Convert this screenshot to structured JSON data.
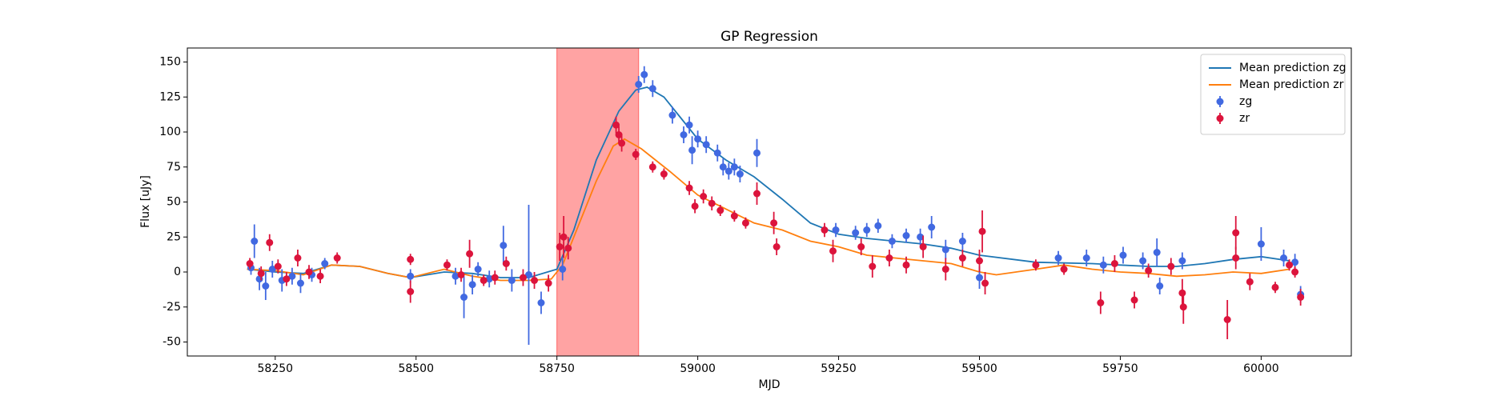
{
  "chart_data": {
    "type": "gp_errorbar",
    "title": "GP Regression",
    "xlabel": "MJD",
    "ylabel": "Flux [uJy]",
    "xlim": [
      58094,
      60160
    ],
    "ylim": [
      -60,
      160
    ],
    "xticks": [
      58250,
      58500,
      58750,
      59000,
      59250,
      59500,
      59750,
      60000
    ],
    "yticks": [
      -50,
      -25,
      0,
      25,
      50,
      75,
      100,
      125,
      150
    ],
    "shaded_region": {
      "x": [
        58750,
        58895
      ],
      "color": "#ff6666"
    },
    "legend": "upper right",
    "series": [
      {
        "name": "Mean prediction zg",
        "kind": "line",
        "color": "#1f77b4",
        "x": [
          58200,
          58250,
          58300,
          58350,
          58400,
          58450,
          58490,
          58550,
          58600,
          58650,
          58700,
          58750,
          58780,
          58820,
          58860,
          58890,
          58910,
          58940,
          58970,
          59000,
          59050,
          59100,
          59150,
          59200,
          59250,
          59300,
          59350,
          59400,
          59450,
          59500,
          59600,
          59700,
          59750,
          59800,
          59850,
          59900,
          59950,
          60000,
          60050
        ],
        "values": [
          2,
          0,
          -1,
          5,
          4,
          -1,
          -4,
          0,
          -1,
          -4,
          -4,
          2,
          30,
          80,
          115,
          130,
          132,
          125,
          110,
          95,
          80,
          68,
          52,
          35,
          27,
          24,
          22,
          20,
          17,
          12,
          7,
          6,
          5,
          4,
          4,
          6,
          9,
          11,
          8
        ]
      },
      {
        "name": "Mean prediction zr",
        "kind": "line",
        "color": "#ff7f0e",
        "x": [
          58200,
          58250,
          58300,
          58350,
          58400,
          58450,
          58490,
          58550,
          58600,
          58650,
          58700,
          58740,
          58760,
          58780,
          58820,
          58850,
          58870,
          58900,
          58950,
          59000,
          59050,
          59100,
          59150,
          59200,
          59250,
          59300,
          59350,
          59400,
          59450,
          59500,
          59530,
          59600,
          59650,
          59700,
          59750,
          59800,
          59850,
          59900,
          59950,
          60000,
          60050
        ],
        "values": [
          2,
          1,
          -2,
          5,
          4,
          -1,
          -4,
          2,
          -3,
          -6,
          -6,
          -5,
          5,
          25,
          65,
          90,
          95,
          88,
          72,
          55,
          45,
          35,
          30,
          22,
          18,
          12,
          10,
          8,
          6,
          0,
          -2,
          2,
          5,
          2,
          0,
          -1,
          -3,
          -2,
          0,
          -1,
          2
        ]
      },
      {
        "name": "zg",
        "kind": "errorbar",
        "color": "#4169e1",
        "x": [
          58207,
          58213,
          58222,
          58233,
          58245,
          58262,
          58280,
          58295,
          58315,
          58338,
          58490,
          58570,
          58585,
          58600,
          58610,
          58630,
          58655,
          58670,
          58700,
          58722,
          58760,
          58895,
          58905,
          58920,
          58955,
          58975,
          58985,
          58990,
          59000,
          59015,
          59035,
          59045,
          59055,
          59065,
          59075,
          59105,
          59245,
          59280,
          59300,
          59320,
          59345,
          59370,
          59395,
          59415,
          59440,
          59470,
          59500,
          59640,
          59690,
          59720,
          59755,
          59790,
          59815,
          59820,
          59860,
          60000,
          60040,
          60060,
          60070
        ],
        "values": [
          3,
          22,
          -5,
          -10,
          2,
          -6,
          -3,
          -8,
          -2,
          6,
          -3,
          -3,
          -18,
          -9,
          2,
          -5,
          19,
          -6,
          -2,
          -22,
          2,
          134,
          141,
          131,
          112,
          98,
          105,
          87,
          95,
          91,
          85,
          75,
          72,
          75,
          70,
          85,
          30,
          28,
          30,
          33,
          22,
          26,
          25,
          32,
          16,
          22,
          -4,
          10,
          10,
          5,
          12,
          8,
          14,
          -10,
          8,
          20,
          10,
          7,
          -16
        ],
        "errors": [
          5,
          12,
          8,
          10,
          6,
          8,
          6,
          7,
          5,
          4,
          5,
          6,
          15,
          7,
          5,
          6,
          14,
          8,
          50,
          8,
          8,
          6,
          6,
          6,
          6,
          6,
          6,
          10,
          6,
          6,
          6,
          6,
          6,
          6,
          6,
          10,
          5,
          5,
          5,
          5,
          5,
          5,
          6,
          8,
          7,
          6,
          8,
          5,
          6,
          6,
          6,
          6,
          10,
          6,
          6,
          12,
          6,
          6,
          6
        ]
      },
      {
        "name": "zr",
        "kind": "errorbar",
        "color": "#dc143c",
        "x": [
          58205,
          58225,
          58240,
          58255,
          58270,
          58290,
          58310,
          58330,
          58360,
          58490,
          58490,
          58555,
          58580,
          58595,
          58620,
          58640,
          58660,
          58690,
          58710,
          58735,
          58755,
          58762,
          58770,
          58855,
          58860,
          58865,
          58890,
          58920,
          58940,
          58985,
          58995,
          59010,
          59025,
          59040,
          59065,
          59085,
          59105,
          59135,
          59140,
          59225,
          59240,
          59290,
          59310,
          59340,
          59370,
          59400,
          59440,
          59470,
          59500,
          59505,
          59510,
          59600,
          59650,
          59715,
          59740,
          59775,
          59800,
          59840,
          59860,
          59862,
          59940,
          59955,
          59955,
          59980,
          60025,
          60050,
          60060,
          60070
        ],
        "values": [
          6,
          -1,
          21,
          4,
          -5,
          10,
          0,
          -3,
          10,
          9,
          -14,
          5,
          -2,
          13,
          -6,
          -4,
          6,
          -4,
          -6,
          -8,
          18,
          25,
          17,
          105,
          98,
          92,
          84,
          75,
          70,
          60,
          47,
          54,
          49,
          44,
          40,
          35,
          56,
          35,
          18,
          30,
          15,
          18,
          4,
          10,
          5,
          18,
          2,
          10,
          8,
          29,
          -8,
          5,
          2,
          -22,
          6,
          -20,
          1,
          4,
          -15,
          -25,
          -34,
          28,
          10,
          -7,
          -11,
          5,
          0,
          -18
        ],
        "errors": [
          4,
          5,
          6,
          5,
          5,
          6,
          5,
          5,
          4,
          4,
          8,
          4,
          5,
          10,
          4,
          5,
          5,
          6,
          6,
          6,
          10,
          15,
          8,
          6,
          6,
          6,
          4,
          4,
          4,
          5,
          5,
          5,
          5,
          4,
          4,
          4,
          8,
          8,
          6,
          5,
          8,
          6,
          8,
          6,
          6,
          8,
          8,
          6,
          8,
          15,
          8,
          4,
          4,
          8,
          6,
          6,
          5,
          6,
          10,
          12,
          14,
          12,
          8,
          6,
          4,
          4,
          4,
          6
        ]
      }
    ]
  }
}
